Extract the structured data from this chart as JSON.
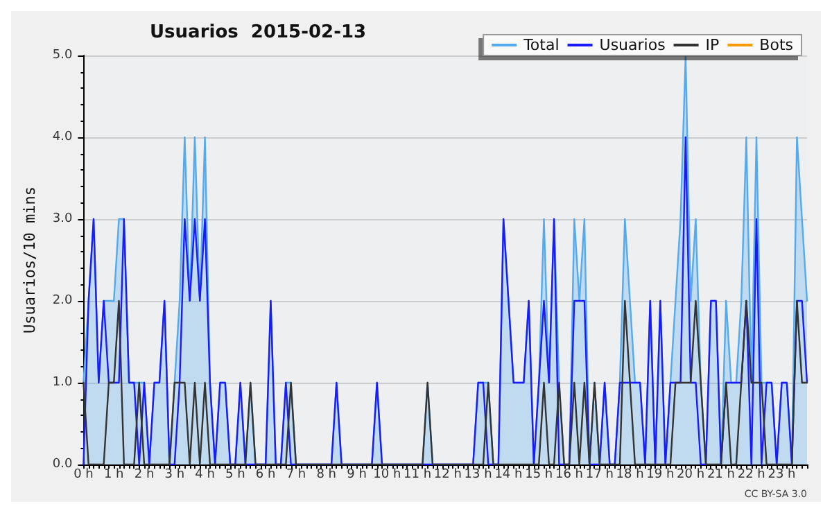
{
  "chart_data": {
    "type": "line",
    "title": "Usuarios  2015-02-13",
    "ylabel": "Usuarios/10 mins",
    "categories": [
      "0 h",
      null,
      null,
      null,
      null,
      null,
      "1 h",
      null,
      null,
      null,
      null,
      null,
      "2 h",
      null,
      null,
      null,
      null,
      null,
      "3 h",
      null,
      null,
      null,
      null,
      null,
      "4 h",
      null,
      null,
      null,
      null,
      null,
      "5 h",
      null,
      null,
      null,
      null,
      null,
      "6 h",
      null,
      null,
      null,
      null,
      null,
      "7 h",
      null,
      null,
      null,
      null,
      null,
      "8 h",
      null,
      null,
      null,
      null,
      null,
      "9 h",
      null,
      null,
      null,
      null,
      null,
      "10 h",
      null,
      null,
      null,
      null,
      null,
      "11 h",
      null,
      null,
      null,
      null,
      null,
      "12 h",
      null,
      null,
      null,
      null,
      null,
      "13 h",
      null,
      null,
      null,
      null,
      null,
      "14 h",
      null,
      null,
      null,
      null,
      null,
      "15 h",
      null,
      null,
      null,
      null,
      null,
      "16 h",
      null,
      null,
      null,
      null,
      null,
      "17 h",
      null,
      null,
      null,
      null,
      null,
      "18 h",
      null,
      null,
      null,
      null,
      null,
      "19 h",
      null,
      null,
      null,
      null,
      null,
      "20 h",
      null,
      null,
      null,
      null,
      null,
      "21 h",
      null,
      null,
      null,
      null,
      null,
      "22 h",
      null,
      null,
      null,
      null,
      null,
      "23 h",
      null,
      null,
      null,
      null,
      null
    ],
    "series": [
      {
        "name": "Total",
        "type": "area",
        "color": "#55aaee",
        "values": [
          1,
          2,
          3,
          1,
          2,
          2,
          2,
          3,
          3,
          1,
          1,
          1,
          1,
          0,
          1,
          1,
          2,
          0,
          1,
          2,
          4,
          2,
          4,
          2,
          4,
          1,
          0,
          1,
          1,
          0,
          0,
          1,
          0,
          1,
          0,
          0,
          0,
          2,
          0,
          0,
          1,
          1,
          0,
          0,
          0,
          0,
          0,
          0,
          0,
          0,
          1,
          0,
          0,
          0,
          0,
          0,
          0,
          0,
          1,
          0,
          0,
          0,
          0,
          0,
          0,
          0,
          0,
          0,
          1,
          0,
          0,
          0,
          0,
          0,
          0,
          0,
          0,
          0,
          1,
          1,
          1,
          0,
          0,
          3,
          2,
          1,
          1,
          1,
          2,
          0,
          1,
          3,
          1,
          3,
          1,
          0,
          0,
          3,
          2,
          3,
          0,
          1,
          0,
          1,
          0,
          0,
          1,
          3,
          2,
          1,
          1,
          0,
          2,
          0,
          2,
          0,
          1,
          2,
          3,
          5,
          2,
          3,
          1,
          0,
          2,
          2,
          0,
          2,
          1,
          1,
          2,
          4,
          1,
          4,
          1,
          1,
          1,
          0,
          1,
          1,
          0,
          4,
          3,
          2
        ]
      },
      {
        "name": "Usuarios",
        "color": "#1a1aff",
        "values": [
          0,
          2,
          3,
          1,
          2,
          1,
          1,
          1,
          3,
          1,
          1,
          0,
          1,
          0,
          1,
          1,
          2,
          0,
          0,
          1,
          3,
          2,
          3,
          2,
          3,
          1,
          0,
          1,
          1,
          0,
          0,
          1,
          0,
          0,
          0,
          0,
          0,
          2,
          0,
          0,
          1,
          0,
          0,
          0,
          0,
          0,
          0,
          0,
          0,
          0,
          1,
          0,
          0,
          0,
          0,
          0,
          0,
          0,
          1,
          0,
          0,
          0,
          0,
          0,
          0,
          0,
          0,
          0,
          0,
          0,
          0,
          0,
          0,
          0,
          0,
          0,
          0,
          0,
          1,
          1,
          0,
          0,
          0,
          3,
          2,
          1,
          1,
          1,
          2,
          0,
          1,
          2,
          1,
          3,
          0,
          0,
          0,
          2,
          2,
          2,
          0,
          0,
          0,
          1,
          0,
          0,
          1,
          1,
          1,
          1,
          1,
          0,
          2,
          0,
          2,
          0,
          1,
          1,
          1,
          4,
          1,
          1,
          0,
          0,
          2,
          2,
          0,
          1,
          1,
          1,
          1,
          2,
          0,
          3,
          0,
          1,
          1,
          0,
          1,
          1,
          0,
          2,
          2,
          1
        ]
      },
      {
        "name": "IP",
        "color": "#333333",
        "values": [
          1,
          0,
          0,
          0,
          0,
          1,
          1,
          2,
          0,
          0,
          0,
          1,
          0,
          0,
          0,
          0,
          0,
          0,
          1,
          1,
          1,
          0,
          1,
          0,
          1,
          0,
          0,
          0,
          0,
          0,
          0,
          0,
          0,
          1,
          0,
          0,
          0,
          0,
          0,
          0,
          0,
          1,
          0,
          0,
          0,
          0,
          0,
          0,
          0,
          0,
          0,
          0,
          0,
          0,
          0,
          0,
          0,
          0,
          0,
          0,
          0,
          0,
          0,
          0,
          0,
          0,
          0,
          0,
          1,
          0,
          0,
          0,
          0,
          0,
          0,
          0,
          0,
          0,
          0,
          0,
          1,
          0,
          0,
          0,
          0,
          0,
          0,
          0,
          0,
          0,
          0,
          1,
          0,
          0,
          1,
          0,
          0,
          1,
          0,
          1,
          0,
          1,
          0,
          0,
          0,
          0,
          0,
          2,
          1,
          0,
          0,
          0,
          0,
          0,
          0,
          0,
          0,
          1,
          1,
          1,
          1,
          2,
          1,
          0,
          0,
          0,
          0,
          1,
          0,
          0,
          1,
          2,
          1,
          1,
          1,
          0,
          0,
          0,
          0,
          0,
          0,
          2,
          1,
          1
        ]
      },
      {
        "name": "Bots",
        "color": "#ff9900",
        "values": [
          null,
          null,
          null,
          null,
          null,
          null,
          null,
          null,
          null,
          null,
          null,
          null,
          null,
          null,
          null,
          null,
          null,
          null,
          null,
          null,
          null,
          null,
          null,
          null,
          null,
          null,
          null,
          null,
          null,
          null,
          null,
          null,
          null,
          null,
          null,
          null,
          null,
          null,
          null,
          null,
          null,
          null,
          null,
          null,
          null,
          null,
          null,
          null,
          null,
          null,
          null,
          null,
          null,
          null,
          null,
          null,
          null,
          null,
          null,
          null,
          null,
          null,
          null,
          null,
          null,
          null,
          null,
          null,
          null,
          null,
          null,
          null,
          null,
          null,
          null,
          null,
          null,
          null,
          null,
          null,
          null,
          null,
          null,
          null,
          null,
          null,
          null,
          null,
          null,
          null,
          null,
          null,
          null,
          null,
          null,
          null,
          null,
          null,
          null,
          null,
          null,
          null,
          null,
          null,
          null,
          null,
          null,
          null,
          null,
          null,
          null,
          null,
          null,
          null,
          null,
          null,
          null,
          null,
          null,
          null,
          null,
          null,
          null,
          null,
          null,
          null,
          null,
          null,
          null,
          null,
          null,
          null,
          null,
          null,
          null,
          null,
          null,
          null,
          null,
          null,
          null,
          null,
          null,
          null
        ]
      }
    ],
    "ylim": [
      0,
      5
    ],
    "yticks": [
      {
        "value": 0,
        "label": "0.0"
      },
      {
        "value": 1,
        "label": "1.0"
      },
      {
        "value": 2,
        "label": "2.0"
      },
      {
        "value": 3,
        "label": "3.0"
      },
      {
        "value": 4,
        "label": "4.0"
      },
      {
        "value": 5,
        "label": "5.0"
      }
    ],
    "grid": "y",
    "legend": "top right",
    "marker": "none",
    "line_style": "solid",
    "annotations": [
      "CC BY-SA 3.0"
    ]
  }
}
